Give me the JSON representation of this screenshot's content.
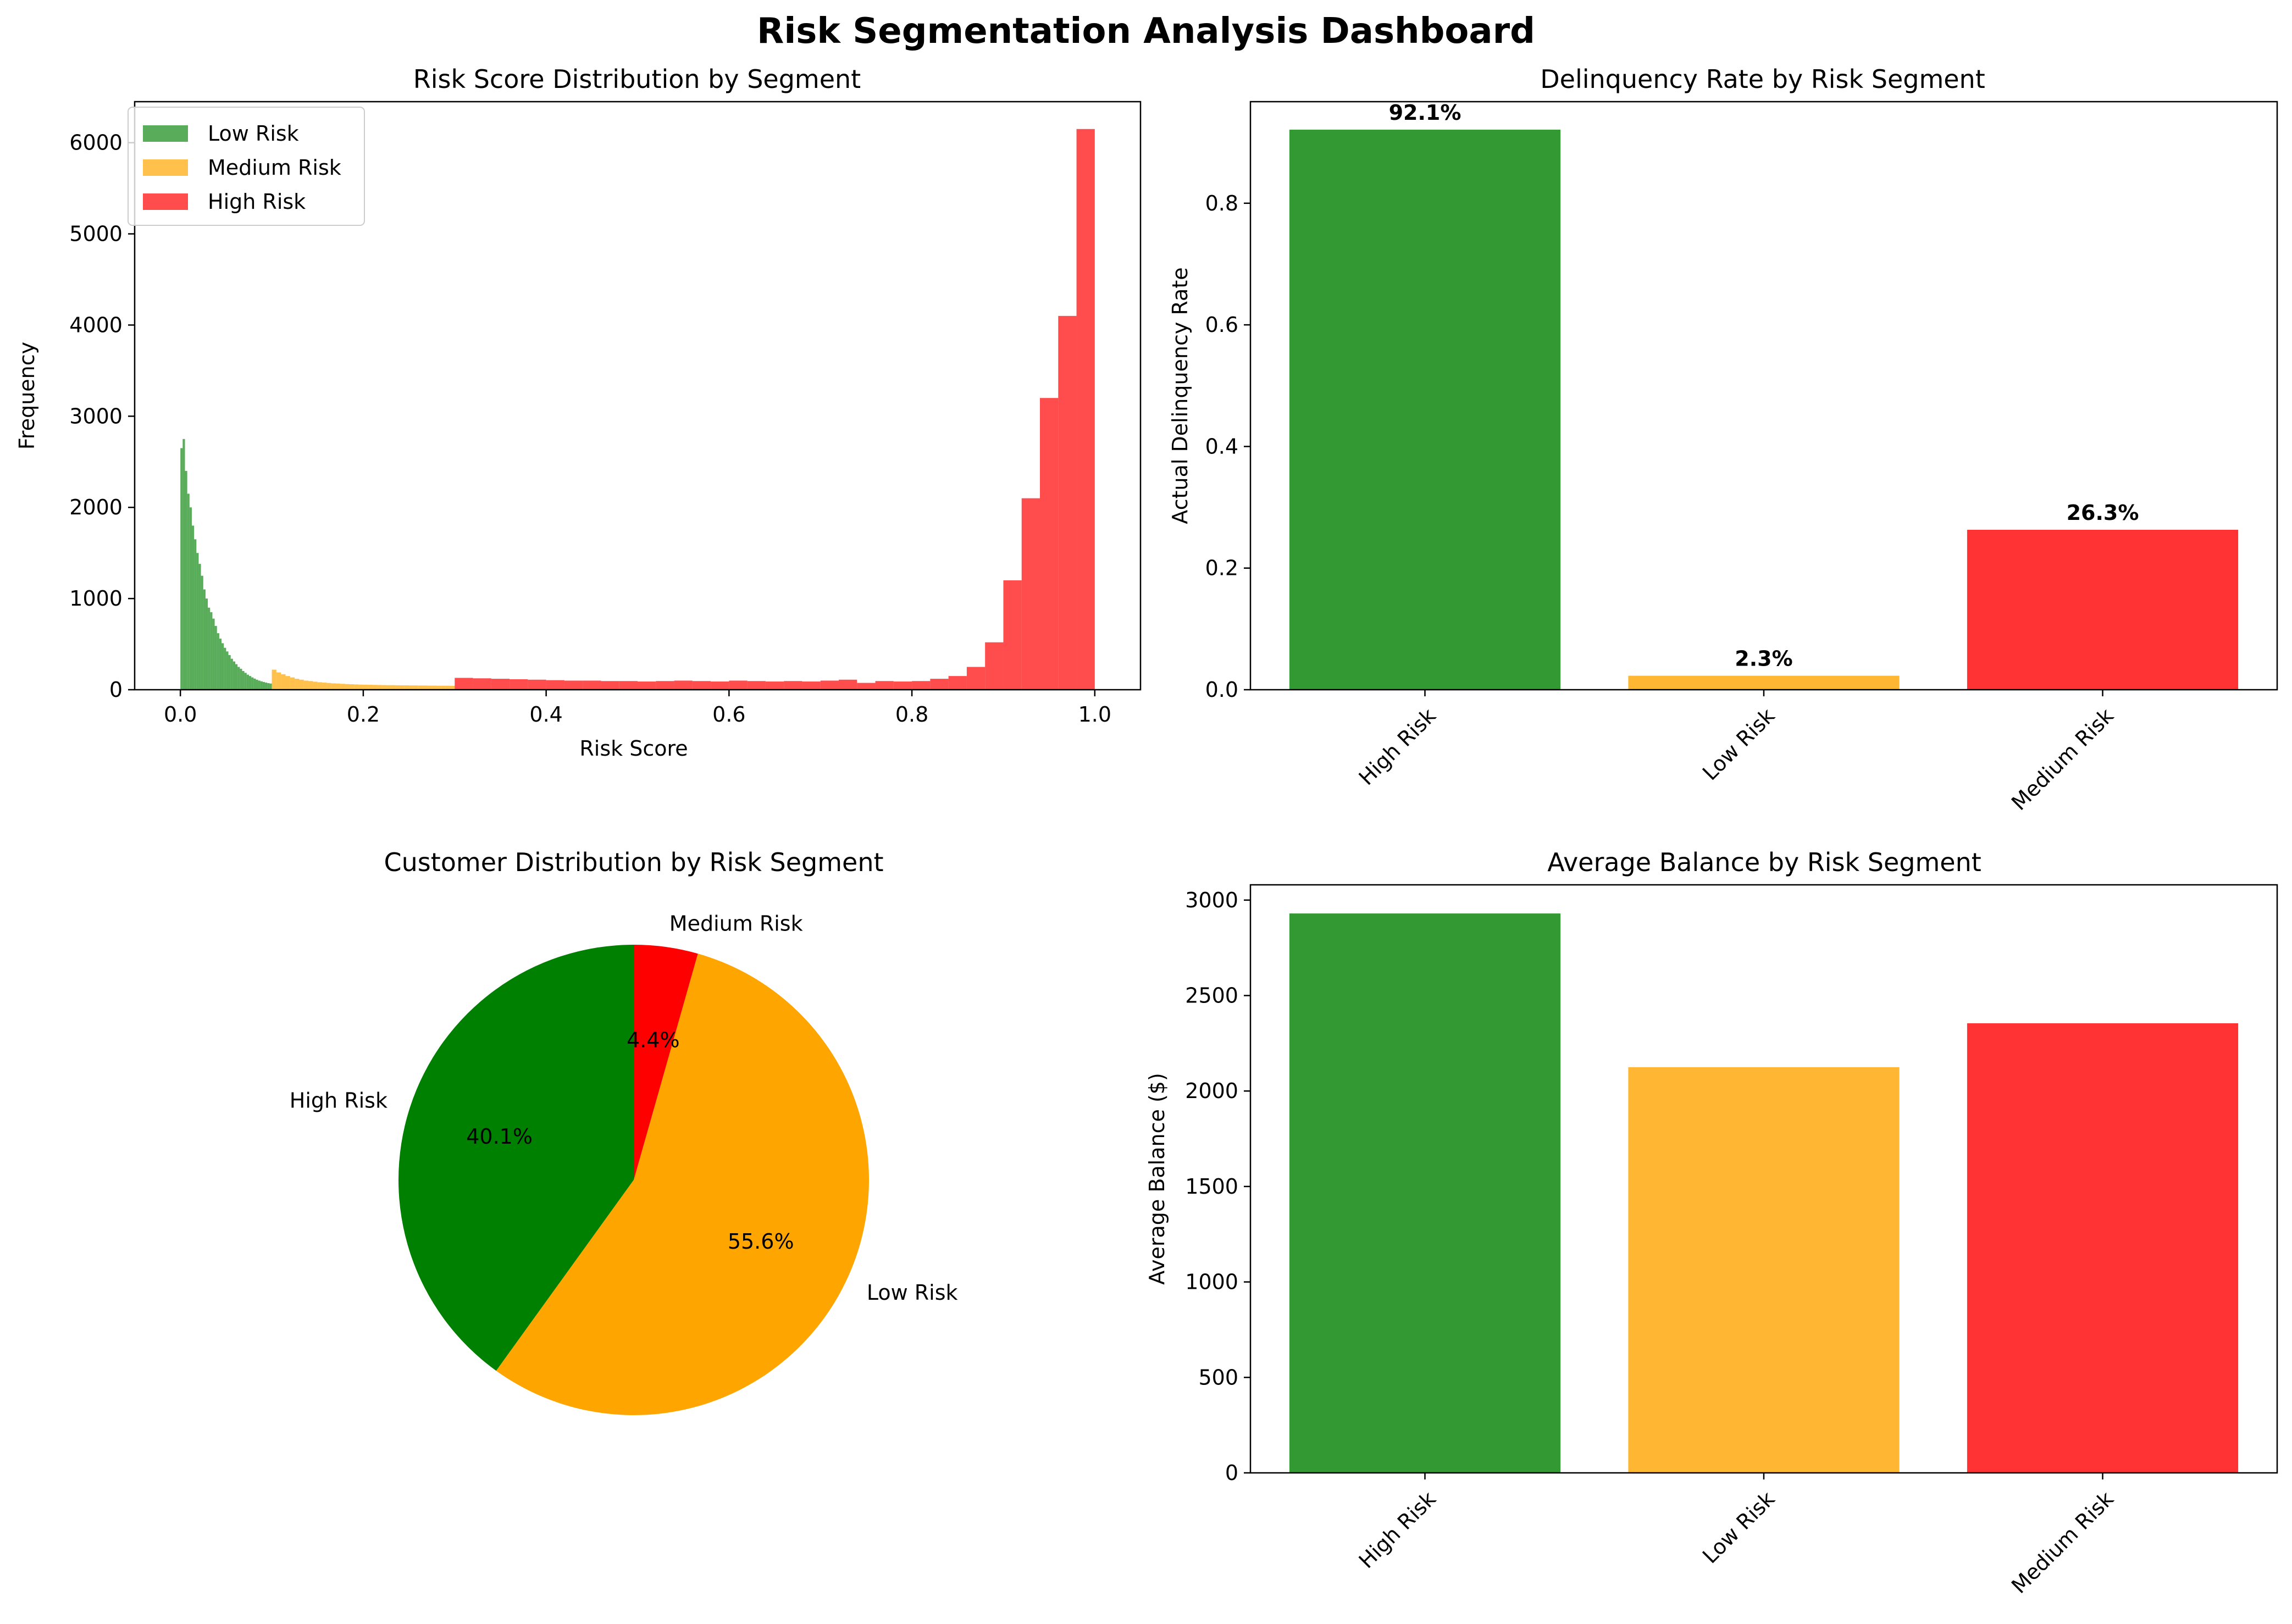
{
  "title": "Risk Segmentation Analysis Dashboard",
  "colors": {
    "low": "#008000",
    "medium": "#FFA500",
    "high": "#FF0000"
  },
  "chart_data": [
    {
      "id": "hist",
      "type": "bar",
      "title": "Risk Score Distribution by Segment",
      "xlabel": "Risk Score",
      "ylabel": "Frequency",
      "xlim": [
        -0.05,
        1.05
      ],
      "ylim": [
        0,
        6450
      ],
      "xticks": [
        0.0,
        0.2,
        0.4,
        0.6,
        0.8,
        1.0
      ],
      "xtick_labels": [
        "0.0",
        "0.2",
        "0.4",
        "0.6",
        "0.8",
        "1.0"
      ],
      "yticks": [
        0,
        1000,
        2000,
        3000,
        4000,
        5000,
        6000
      ],
      "ytick_labels": [
        "0",
        "1000",
        "2000",
        "3000",
        "4000",
        "5000",
        "6000"
      ],
      "legend": {
        "position": "upper-left",
        "entries": [
          "Low Risk",
          "Medium Risk",
          "High Risk"
        ]
      },
      "series": [
        {
          "name": "Low Risk",
          "color": "#008000",
          "alpha": 0.65,
          "x_start": 0.0,
          "bin_width": 0.0025,
          "values": [
            2650,
            2750,
            2400,
            2150,
            2000,
            1800,
            1650,
            1500,
            1380,
            1250,
            1100,
            1000,
            900,
            850,
            780,
            700,
            620,
            560,
            510,
            460,
            420,
            380,
            340,
            310,
            280,
            250,
            230,
            205,
            185,
            165,
            150,
            135,
            122,
            110,
            100,
            92,
            85,
            78,
            72,
            68
          ]
        },
        {
          "name": "Medium Risk",
          "color": "#FFA500",
          "alpha": 0.7,
          "x_start": 0.1,
          "bin_width": 0.005,
          "values": [
            220,
            190,
            170,
            150,
            135,
            120,
            110,
            100,
            95,
            88,
            82,
            78,
            74,
            70,
            68,
            65,
            62,
            60,
            58,
            56,
            55,
            54,
            53,
            52,
            51,
            50,
            50,
            49,
            48,
            48,
            47,
            47,
            46,
            46,
            45,
            45,
            44,
            44,
            44,
            43
          ]
        },
        {
          "name": "High Risk",
          "color": "#FF0000",
          "alpha": 0.7,
          "x_start": 0.3,
          "bin_width": 0.02,
          "values": [
            130,
            125,
            120,
            115,
            110,
            105,
            100,
            100,
            95,
            95,
            90,
            95,
            100,
            95,
            90,
            100,
            95,
            90,
            95,
            90,
            100,
            110,
            75,
            95,
            90,
            95,
            120,
            150,
            250,
            520,
            1200,
            2100,
            3200,
            4100,
            6150
          ]
        }
      ]
    },
    {
      "id": "delinq",
      "type": "bar",
      "title": "Delinquency Rate by Risk Segment",
      "xlabel": "",
      "ylabel": "Actual Delinquency Rate",
      "ylim": [
        0,
        0.967
      ],
      "yticks": [
        0.0,
        0.2,
        0.4,
        0.6,
        0.8
      ],
      "ytick_labels": [
        "0.0",
        "0.2",
        "0.4",
        "0.6",
        "0.8"
      ],
      "categories": [
        "High Risk",
        "Low Risk",
        "Medium Risk"
      ],
      "values": [
        0.921,
        0.023,
        0.263
      ],
      "data_labels": [
        "92.1%",
        "2.3%",
        "26.3%"
      ],
      "bar_colors": [
        "#008000",
        "#FFA500",
        "#FF0000"
      ]
    },
    {
      "id": "pie",
      "type": "pie",
      "title": "Customer Distribution by Risk Segment",
      "labels": [
        "High Risk",
        "Low Risk",
        "Medium Risk"
      ],
      "values": [
        40.1,
        55.6,
        4.4
      ],
      "pct_labels": [
        "40.1%",
        "55.6%",
        "4.4%"
      ],
      "colors": [
        "#008000",
        "#FFA500",
        "#FF0000"
      ],
      "start_angle": 90
    },
    {
      "id": "balance",
      "type": "bar",
      "title": "Average Balance by Risk Segment",
      "xlabel": "",
      "ylabel": "Average Balance ($)",
      "ylim": [
        0,
        3080
      ],
      "yticks": [
        0,
        500,
        1000,
        1500,
        2000,
        2500,
        3000
      ],
      "ytick_labels": [
        "0",
        "500",
        "1000",
        "1500",
        "2000",
        "2500",
        "3000"
      ],
      "categories": [
        "High Risk",
        "Low Risk",
        "Medium Risk"
      ],
      "values": [
        2930,
        2125,
        2355
      ],
      "bar_colors": [
        "#008000",
        "#FFA500",
        "#FF0000"
      ]
    }
  ]
}
